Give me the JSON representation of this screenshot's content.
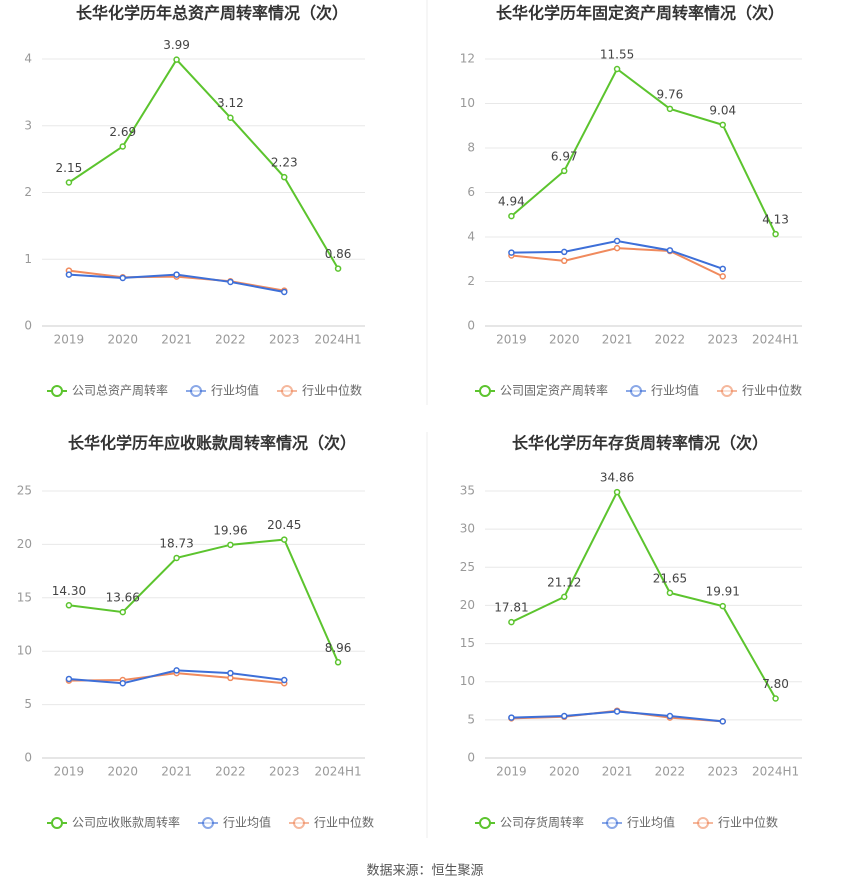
{
  "chart_data": [
    {
      "type": "line",
      "title": "长华化学历年总资产周转率情况（次）",
      "categories": [
        "2019",
        "2020",
        "2021",
        "2022",
        "2023",
        "2024H1"
      ],
      "ylim": [
        0,
        4
      ],
      "yticks": [
        0,
        1,
        2,
        3,
        4
      ],
      "grid": true,
      "series": [
        {
          "name": "公司总资产周转率",
          "color": "#5cc42e",
          "values": [
            2.15,
            2.69,
            3.99,
            3.12,
            2.23,
            0.86
          ],
          "value_labels": [
            "2.15",
            "2.69",
            "3.99",
            "3.12",
            "2.23",
            "0.86"
          ]
        },
        {
          "name": "行业均值",
          "color": "#3d6fd8",
          "values": [
            0.77,
            0.72,
            0.77,
            0.66,
            0.51,
            null
          ]
        },
        {
          "name": "行业中位数",
          "color": "#f08a5d",
          "values": [
            0.83,
            0.73,
            0.74,
            0.67,
            0.53,
            null
          ]
        }
      ]
    },
    {
      "type": "line",
      "title": "长华化学历年固定资产周转率情况（次）",
      "categories": [
        "2019",
        "2020",
        "2021",
        "2022",
        "2023",
        "2024H1"
      ],
      "ylim": [
        0,
        12
      ],
      "yticks": [
        0,
        2,
        4,
        6,
        8,
        10,
        12
      ],
      "grid": true,
      "series": [
        {
          "name": "公司固定资产周转率",
          "color": "#5cc42e",
          "values": [
            4.94,
            6.97,
            11.55,
            9.76,
            9.04,
            4.13
          ],
          "value_labels": [
            "4.94",
            "6.97",
            "11.55",
            "9.76",
            "9.04",
            "4.13"
          ]
        },
        {
          "name": "行业均值",
          "color": "#3d6fd8",
          "values": [
            3.3,
            3.33,
            3.82,
            3.4,
            2.57,
            null
          ]
        },
        {
          "name": "行业中位数",
          "color": "#f08a5d",
          "values": [
            3.17,
            2.93,
            3.5,
            3.37,
            2.23,
            null
          ]
        }
      ]
    },
    {
      "type": "line",
      "title": "长华化学历年应收账款周转率情况（次）",
      "categories": [
        "2019",
        "2020",
        "2021",
        "2022",
        "2023",
        "2024H1"
      ],
      "ylim": [
        0,
        25
      ],
      "yticks": [
        0,
        5,
        10,
        15,
        20,
        25
      ],
      "grid": true,
      "series": [
        {
          "name": "公司应收账款周转率",
          "color": "#5cc42e",
          "values": [
            14.3,
            13.66,
            18.73,
            19.96,
            20.45,
            8.96
          ],
          "value_labels": [
            "14.30",
            "13.66",
            "18.73",
            "19.96",
            "20.45",
            "8.96"
          ]
        },
        {
          "name": "行业均值",
          "color": "#3d6fd8",
          "values": [
            7.4,
            7.0,
            8.2,
            7.95,
            7.3,
            null
          ]
        },
        {
          "name": "行业中位数",
          "color": "#f08a5d",
          "values": [
            7.25,
            7.3,
            7.95,
            7.5,
            7.0,
            null
          ]
        }
      ]
    },
    {
      "type": "line",
      "title": "长华化学历年存货周转率情况（次）",
      "categories": [
        "2019",
        "2020",
        "2021",
        "2022",
        "2023",
        "2024H1"
      ],
      "ylim": [
        0,
        35
      ],
      "yticks": [
        0,
        5,
        10,
        15,
        20,
        25,
        30,
        35
      ],
      "grid": true,
      "series": [
        {
          "name": "公司存货周转率",
          "color": "#5cc42e",
          "values": [
            17.81,
            21.12,
            34.86,
            21.65,
            19.91,
            7.8
          ],
          "value_labels": [
            "17.81",
            "21.12",
            "34.86",
            "21.65",
            "19.91",
            "7.80"
          ]
        },
        {
          "name": "行业均值",
          "color": "#3d6fd8",
          "values": [
            5.3,
            5.5,
            6.1,
            5.5,
            4.8,
            null
          ]
        },
        {
          "name": "行业中位数",
          "color": "#f08a5d",
          "values": [
            5.2,
            5.4,
            6.2,
            5.3,
            4.8,
            null
          ]
        }
      ]
    }
  ],
  "source": "数据来源：恒生聚源"
}
